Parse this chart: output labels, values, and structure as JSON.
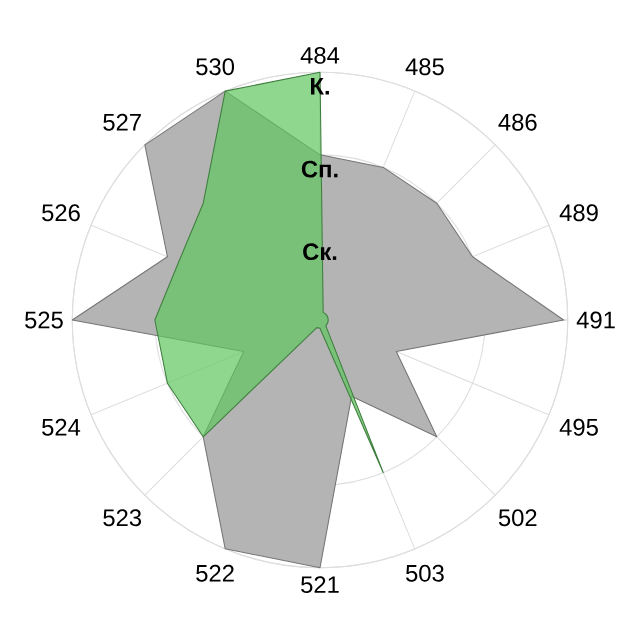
{
  "chart_data": {
    "type": "radar",
    "categories": [
      "484",
      "485",
      "486",
      "489",
      "491",
      "495",
      "502",
      "503",
      "521",
      "522",
      "523",
      "524",
      "525",
      "526",
      "527",
      "530"
    ],
    "ylim": [
      0,
      3
    ],
    "yticks": [
      {
        "value": 1,
        "label": "Ск."
      },
      {
        "value": 2,
        "label": "Сп."
      },
      {
        "value": 3,
        "label": "К."
      }
    ],
    "grid": true,
    "series": [
      {
        "color": "#b4b4b4",
        "values": [
          2,
          2,
          2,
          2,
          2.95,
          1,
          2,
          1,
          3,
          3,
          2,
          1,
          3,
          2,
          3,
          3
        ]
      },
      {
        "color": "#5fc45f",
        "values": [
          3,
          0.1,
          0.1,
          0.1,
          0.1,
          0.1,
          0.1,
          2,
          0.1,
          0.1,
          2,
          2,
          2,
          1.85,
          2,
          3
        ]
      }
    ]
  }
}
